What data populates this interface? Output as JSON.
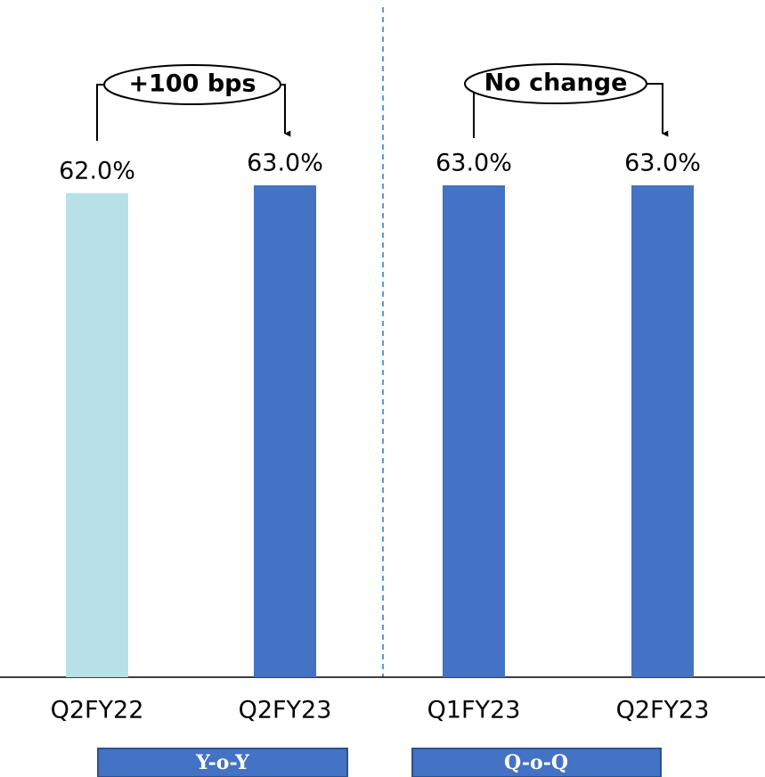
{
  "chart_data": {
    "type": "bar",
    "categories": [
      "Q2FY22",
      "Q2FY23",
      "Q1FY23",
      "Q2FY23"
    ],
    "values": [
      62.0,
      63.0,
      63.0,
      63.0
    ],
    "value_labels": [
      "62.0%",
      "63.0%",
      "63.0%",
      "63.0%"
    ],
    "colors": [
      "#b7e1e6",
      "#4472c4",
      "#4472c4",
      "#4472c4"
    ],
    "annotations": [
      "+100 bps",
      "No change"
    ],
    "groups": [
      "Y-o-Y",
      "Q-o-Q"
    ]
  }
}
